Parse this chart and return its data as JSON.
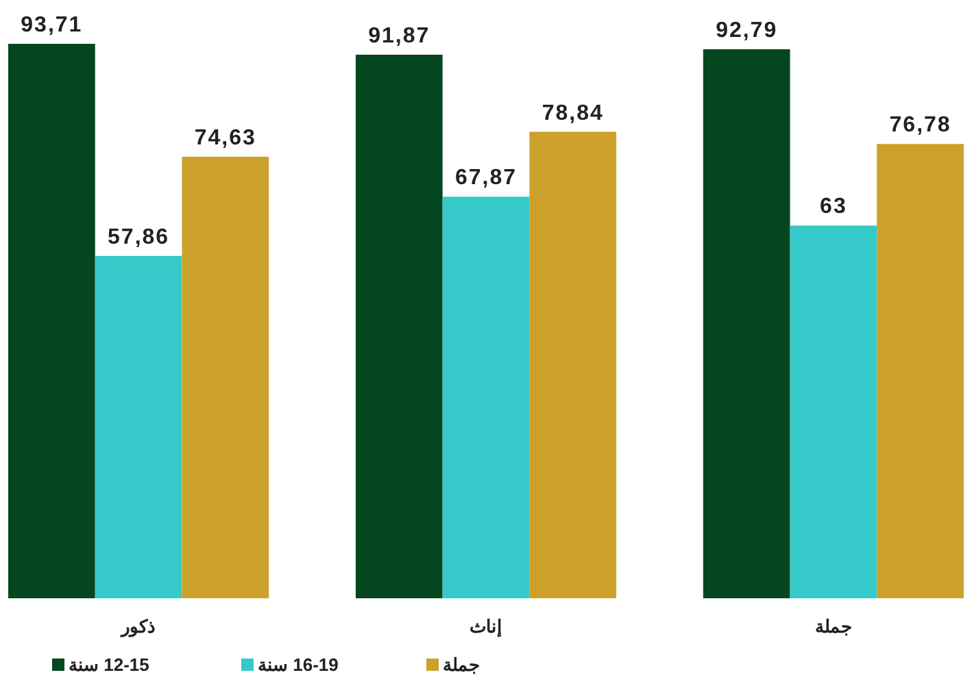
{
  "chart_data": {
    "type": "bar",
    "categories": [
      "ذكور",
      "إناث",
      "جملة"
    ],
    "series": [
      {
        "name": "12-15 سنة",
        "color": "#04471f",
        "values": [
          93.71,
          91.87,
          92.79
        ],
        "value_labels": [
          "93,71",
          "91,87",
          "92,79"
        ]
      },
      {
        "name": "16-19 سنة",
        "color": "#35c9c9",
        "values": [
          57.86,
          67.87,
          63
        ],
        "value_labels": [
          "57,86",
          "67,87",
          "63"
        ]
      },
      {
        "name": "جملة",
        "color": "#cba12b",
        "values": [
          74.63,
          78.84,
          76.78
        ],
        "value_labels": [
          "74,63",
          "78,84",
          "76,78"
        ]
      }
    ],
    "legend": "bottom left",
    "tick_labels": "x"
  }
}
